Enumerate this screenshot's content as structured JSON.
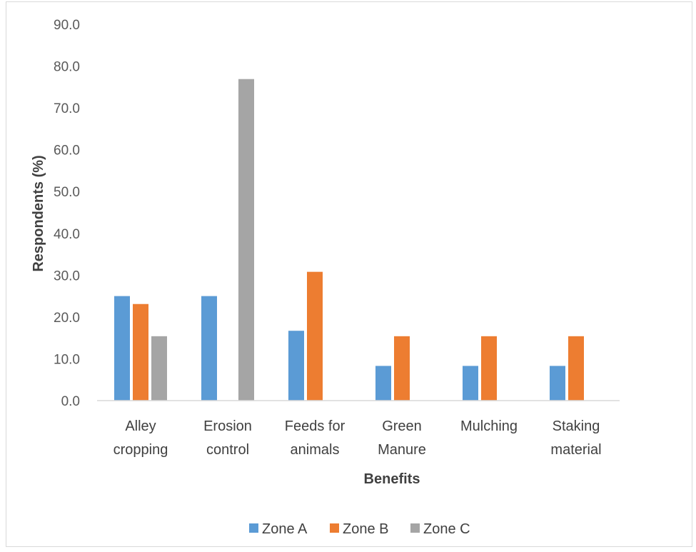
{
  "chart_data": {
    "type": "bar",
    "categories": [
      [
        "Alley",
        "cropping"
      ],
      [
        "Erosion",
        "control"
      ],
      [
        "Feeds for",
        "animals"
      ],
      [
        "Green",
        "Manure"
      ],
      [
        "Mulching"
      ],
      [
        "Staking",
        "material"
      ]
    ],
    "series": [
      {
        "name": "Zone A",
        "color": "#5b9bd5",
        "values": [
          25.0,
          25.0,
          16.7,
          8.3,
          8.3,
          8.3
        ]
      },
      {
        "name": "Zone B",
        "color": "#ed7d31",
        "values": [
          23.1,
          0,
          30.8,
          15.4,
          15.4,
          15.4
        ]
      },
      {
        "name": "Zone C",
        "color": "#a5a5a5",
        "values": [
          15.4,
          76.9,
          0,
          0,
          0,
          0
        ]
      }
    ],
    "xlabel": "Benefits",
    "ylabel": "Respondents (%)",
    "ylim": [
      0,
      90
    ],
    "yticks": [
      "0.0",
      "10.0",
      "20.0",
      "30.0",
      "40.0",
      "50.0",
      "60.0",
      "70.0",
      "80.0",
      "90.0"
    ],
    "grid": false,
    "legend_position": "bottom"
  }
}
